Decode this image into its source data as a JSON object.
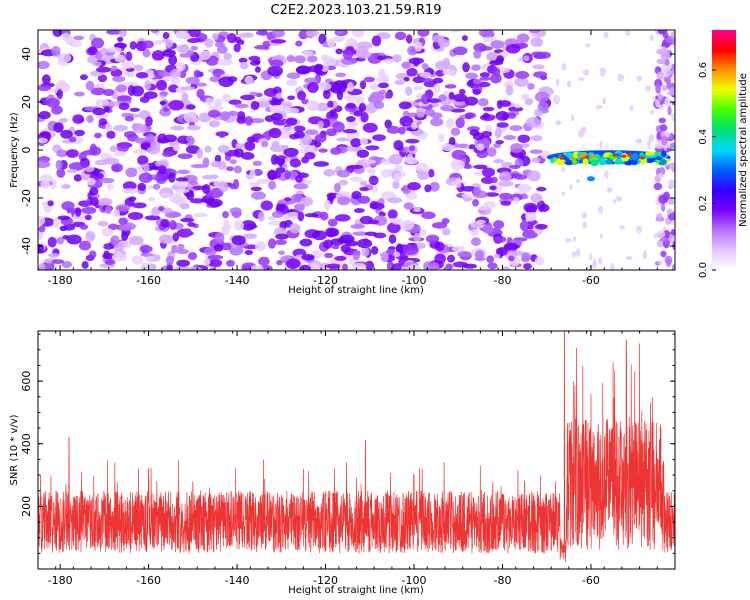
{
  "figure": {
    "title": "C2E2.2023.103.21.59.R19"
  },
  "chart_data": [
    {
      "type": "heatmap",
      "xlabel": "Height of straight line (km)",
      "ylabel": "Frequency (Hz)",
      "xlim": [
        -185,
        -41
      ],
      "ylim": [
        -50,
        50
      ],
      "x_ticks": [
        -180,
        -160,
        -140,
        -120,
        -100,
        -80,
        -60
      ],
      "y_ticks": [
        -40,
        -20,
        0,
        20,
        40
      ],
      "colorbar": {
        "label": "Normalized spectral amplitude",
        "range": [
          0.0,
          0.72
        ],
        "ticks": [
          0.0,
          0.2,
          0.4,
          0.6
        ],
        "colormap": [
          "#ffffff",
          "#e4c6ff",
          "#b66dff",
          "#7a00ff",
          "#3000ff",
          "#0060ff",
          "#00d8ff",
          "#00e070",
          "#40ff00",
          "#f0ff00",
          "#ff9000",
          "#ff0000",
          "#ff0090"
        ]
      },
      "features": {
        "noise_region_x": [
          -185,
          -70
        ],
        "quiet_region_x": [
          -68,
          -43
        ],
        "signal": {
          "x_range": [
            -70,
            -42
          ],
          "frequency_hz": -3,
          "peak_amplitude": 0.7
        }
      }
    },
    {
      "type": "line",
      "xlabel": "Height of straight line (km)",
      "ylabel": "SNR (10 * v/v)",
      "xlim": [
        -185,
        -41
      ],
      "ylim": [
        0,
        760
      ],
      "x_ticks": [
        -180,
        -160,
        -140,
        -120,
        -100,
        -80,
        -60
      ],
      "y_ticks": [
        200,
        400,
        600
      ],
      "series": [
        {
          "color": "#ee3333",
          "description_points": {
            "baseline_range": [
              50,
              250
            ],
            "x": [
              -185,
              -178,
              -160,
              -150,
              -134,
              -125,
              -111,
              -100,
              -85,
              -75,
              -68,
              -65.6,
              -64,
              -60,
              -55,
              -52,
              -49,
              -45,
              -41
            ],
            "y": [
              130,
              420,
              320,
              280,
              350,
              320,
              410,
              300,
              330,
              280,
              280,
              760,
              600,
              560,
              660,
              730,
              720,
              300,
              230
            ]
          }
        }
      ]
    }
  ]
}
